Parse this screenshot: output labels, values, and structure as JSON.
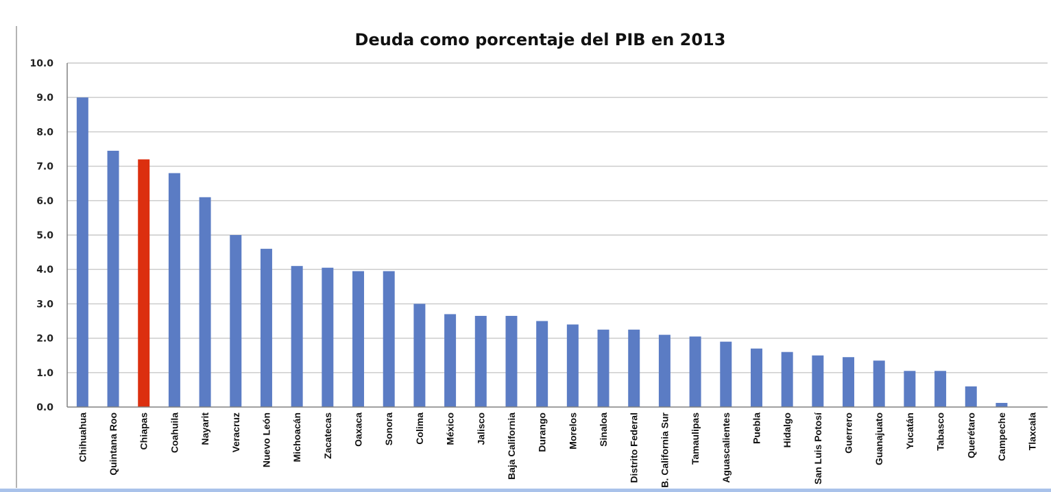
{
  "chart_data": {
    "type": "bar",
    "title": "Deuda como porcentaje del PIB en 2013",
    "xlabel": "",
    "ylabel": "",
    "ylim": [
      0,
      10
    ],
    "yticks": [
      "0.0",
      "1.0",
      "2.0",
      "3.0",
      "4.0",
      "5.0",
      "6.0",
      "7.0",
      "8.0",
      "9.0",
      "10.0"
    ],
    "grid": true,
    "categories": [
      "Chihuahua",
      "Quintana Roo",
      "Chiapas",
      "Coahuila",
      "Nayarit",
      "Veracruz",
      "Nuevo León",
      "Michoacán",
      "Zacatecas",
      "Oaxaca",
      "Sonora",
      "Colima",
      "México",
      "Jalisco",
      "Baja California",
      "Durango",
      "Morelos",
      "Sinaloa",
      "Distrito Federal",
      "B. California Sur",
      "Tamaulipas",
      "Aguascalientes",
      "Puebla",
      "Hidalgo",
      "San Luis Potosí",
      "Guerrero",
      "Guanajuato",
      "Yucatán",
      "Tabasco",
      "Querétaro",
      "Campeche",
      "Tlaxcala"
    ],
    "values": [
      9.0,
      7.45,
      7.2,
      6.8,
      6.1,
      5.0,
      4.6,
      4.1,
      4.05,
      3.95,
      3.95,
      3.0,
      2.7,
      2.65,
      2.65,
      2.5,
      2.4,
      2.25,
      2.25,
      2.1,
      2.05,
      1.9,
      1.7,
      1.6,
      1.5,
      1.45,
      1.35,
      1.05,
      1.05,
      0.6,
      0.12,
      0.0
    ],
    "bar_color": "#5b7cc4",
    "highlight_color": "#dc2f0f",
    "highlight_category": "Chiapas"
  }
}
